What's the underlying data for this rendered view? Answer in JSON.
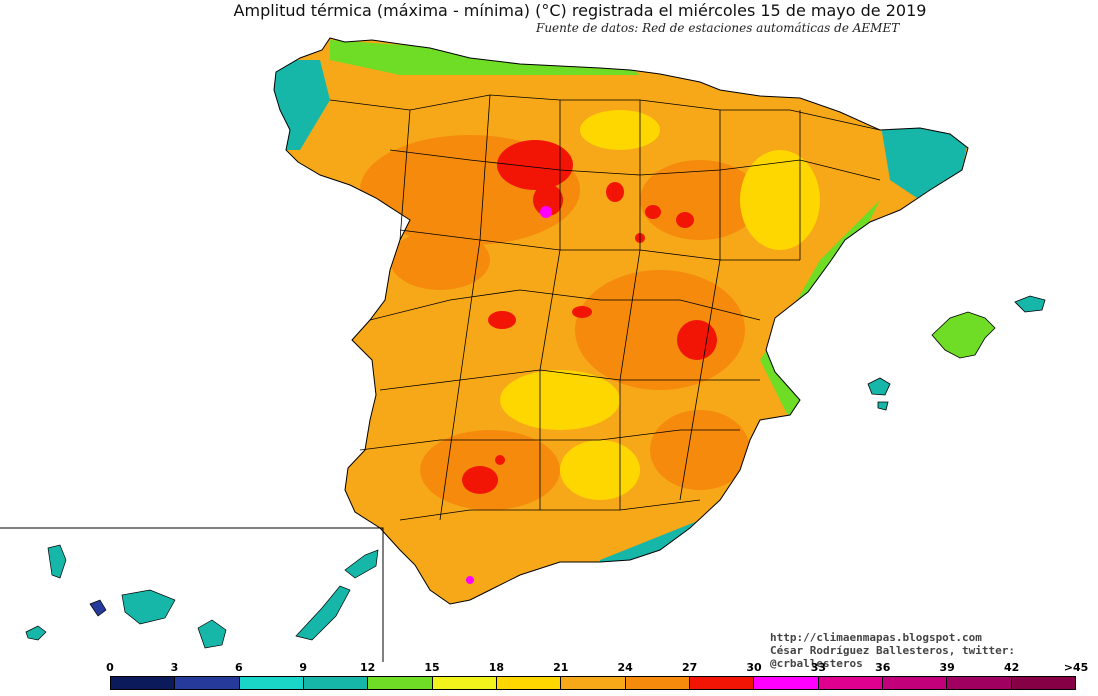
{
  "title": "Amplitud térmica (máxima - mínima) (°C) registrada el miércoles 15 de mayo de 2019",
  "subtitle": "Fuente de datos: Red de estaciones automáticas de AEMET",
  "credits": {
    "blog": "http://climaenmapas.blogspot.com",
    "author": "César Rodríguez Ballesteros, twitter: @crballesteros"
  },
  "legend": {
    "ticks": [
      "0",
      "3",
      "6",
      "9",
      "12",
      "15",
      "18",
      "21",
      "24",
      "27",
      "30",
      "33",
      "36",
      "39",
      "42",
      ">45"
    ],
    "colors": [
      "#0a1a5a",
      "#253a9a",
      "#19d6c9",
      "#16b7a8",
      "#6fdc25",
      "#f2f21c",
      "#ffd700",
      "#f7a818",
      "#f58a0c",
      "#f21505",
      "#ff00ff",
      "#e0008f",
      "#c2007a",
      "#a00060",
      "#850045"
    ]
  },
  "palette": {
    "sea": "#ffffff",
    "land_base": "#f7a818",
    "land_warm": "#f58a0c",
    "hot": "#f21505",
    "mild": "#ffd700",
    "cool": "#6fdc25",
    "coast": "#16b7a8",
    "outline": "#000000"
  }
}
